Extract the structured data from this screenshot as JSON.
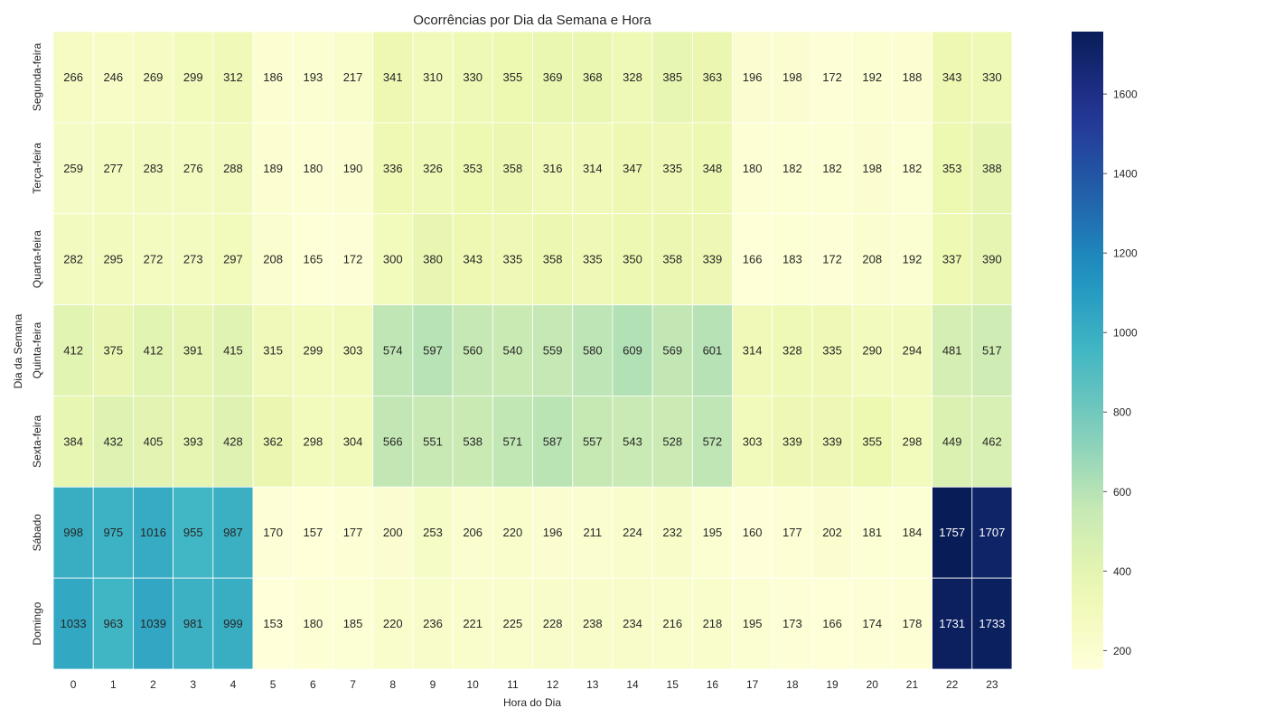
{
  "chart_data": {
    "type": "heatmap",
    "title": "Ocorrências por Dia da Semana e Hora",
    "xlabel": "Hora do Dia",
    "ylabel": "Dia da Semana",
    "x_categories": [
      "0",
      "1",
      "2",
      "3",
      "4",
      "5",
      "6",
      "7",
      "8",
      "9",
      "10",
      "11",
      "12",
      "13",
      "14",
      "15",
      "16",
      "17",
      "18",
      "19",
      "20",
      "21",
      "22",
      "23"
    ],
    "y_categories": [
      "Segunda-feira",
      "Terça-feira",
      "Quarta-feira",
      "Quinta-feira",
      "Sexta-feira",
      "Sábado",
      "Domingo"
    ],
    "values": [
      [
        266,
        246,
        269,
        299,
        312,
        186,
        193,
        217,
        341,
        310,
        330,
        355,
        369,
        368,
        328,
        385,
        363,
        196,
        198,
        172,
        192,
        188,
        343,
        330
      ],
      [
        259,
        277,
        283,
        276,
        288,
        189,
        180,
        190,
        336,
        326,
        353,
        358,
        316,
        314,
        347,
        335,
        348,
        180,
        182,
        182,
        198,
        182,
        353,
        388
      ],
      [
        282,
        295,
        272,
        273,
        297,
        208,
        165,
        172,
        300,
        380,
        343,
        335,
        358,
        335,
        350,
        358,
        339,
        166,
        183,
        172,
        208,
        192,
        337,
        390
      ],
      [
        412,
        375,
        412,
        391,
        415,
        315,
        299,
        303,
        574,
        597,
        560,
        540,
        559,
        580,
        609,
        569,
        601,
        314,
        328,
        335,
        290,
        294,
        481,
        517
      ],
      [
        384,
        432,
        405,
        393,
        428,
        362,
        298,
        304,
        566,
        551,
        538,
        571,
        587,
        557,
        543,
        528,
        572,
        303,
        339,
        339,
        355,
        298,
        449,
        462
      ],
      [
        998,
        975,
        1016,
        955,
        987,
        170,
        157,
        177,
        200,
        253,
        206,
        220,
        196,
        211,
        224,
        232,
        195,
        160,
        177,
        202,
        181,
        184,
        1757,
        1707
      ],
      [
        1033,
        963,
        1039,
        981,
        999,
        153,
        180,
        185,
        220,
        236,
        221,
        225,
        228,
        238,
        234,
        216,
        218,
        195,
        173,
        166,
        174,
        178,
        1731,
        1733
      ]
    ],
    "colorbar": {
      "colormap": "YlGnBu",
      "vmin": 153,
      "vmax": 1757,
      "ticks": [
        "200",
        "400",
        "600",
        "800",
        "1000",
        "1200",
        "1400",
        "1600"
      ]
    },
    "annotations": true,
    "grid": false
  }
}
